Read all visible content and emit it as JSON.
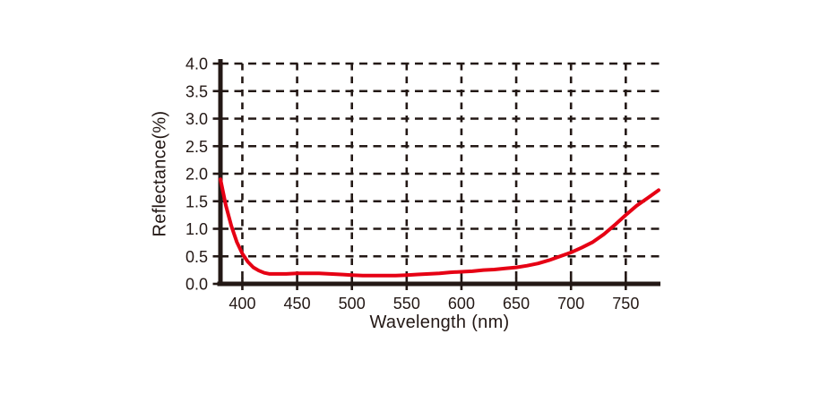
{
  "colors": {
    "background": "#ffffff",
    "axis": "#231815",
    "grid": "#231815",
    "curve": "#e60014",
    "tick_text": "#231815"
  },
  "chart_data": {
    "type": "line",
    "title": "",
    "xlabel": "Wavelength (nm)",
    "ylabel": "Reflectance(%)",
    "xlim": [
      380,
      780
    ],
    "ylim": [
      0.0,
      4.0
    ],
    "x_ticks": [
      400,
      450,
      500,
      550,
      600,
      650,
      700,
      750
    ],
    "y_ticks": [
      0.0,
      0.5,
      1.0,
      1.5,
      2.0,
      2.5,
      3.0,
      3.5,
      4.0
    ],
    "y_tick_labels": [
      "0.0",
      "0.5",
      "1.0",
      "1.5",
      "2.0",
      "2.5",
      "3.0",
      "3.5",
      "4.0"
    ],
    "x_tick_labels": [
      "400",
      "450",
      "500",
      "550",
      "600",
      "650",
      "700",
      "750"
    ],
    "grid": "dashed",
    "legend_position": "none",
    "series": [
      {
        "name": "reflectance-curve",
        "color": "#e60014",
        "points": [
          [
            380,
            1.9
          ],
          [
            385,
            1.42
          ],
          [
            390,
            1.05
          ],
          [
            395,
            0.76
          ],
          [
            400,
            0.55
          ],
          [
            405,
            0.4
          ],
          [
            410,
            0.3
          ],
          [
            415,
            0.24
          ],
          [
            420,
            0.2
          ],
          [
            425,
            0.18
          ],
          [
            430,
            0.18
          ],
          [
            440,
            0.18
          ],
          [
            450,
            0.19
          ],
          [
            460,
            0.19
          ],
          [
            470,
            0.19
          ],
          [
            480,
            0.18
          ],
          [
            490,
            0.17
          ],
          [
            500,
            0.16
          ],
          [
            510,
            0.15
          ],
          [
            520,
            0.15
          ],
          [
            530,
            0.15
          ],
          [
            540,
            0.15
          ],
          [
            550,
            0.16
          ],
          [
            560,
            0.17
          ],
          [
            570,
            0.18
          ],
          [
            580,
            0.19
          ],
          [
            590,
            0.21
          ],
          [
            600,
            0.22
          ],
          [
            610,
            0.23
          ],
          [
            620,
            0.25
          ],
          [
            630,
            0.26
          ],
          [
            640,
            0.28
          ],
          [
            650,
            0.3
          ],
          [
            660,
            0.33
          ],
          [
            670,
            0.37
          ],
          [
            680,
            0.43
          ],
          [
            690,
            0.5
          ],
          [
            700,
            0.57
          ],
          [
            710,
            0.66
          ],
          [
            720,
            0.76
          ],
          [
            730,
            0.9
          ],
          [
            740,
            1.07
          ],
          [
            750,
            1.25
          ],
          [
            760,
            1.42
          ],
          [
            770,
            1.56
          ],
          [
            780,
            1.7
          ]
        ]
      }
    ]
  }
}
